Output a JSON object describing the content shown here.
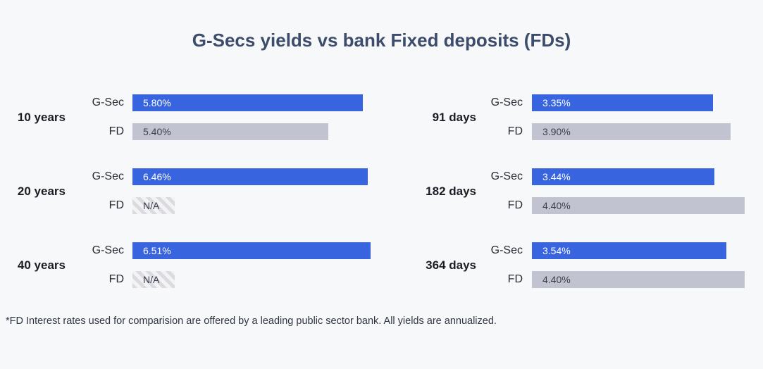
{
  "title": "G-Secs yields vs bank Fixed deposits (FDs)",
  "footnote": "*FD Interest rates used for comparision are offered by a leading public sector bank. All yields are annualized.",
  "colors": {
    "background": "#f7f8fa",
    "title": "#3d4c6b",
    "gsec_bar": "#3864df",
    "fd_bar": "#c1c3d0",
    "gsec_value_text": "#ffffff",
    "fd_value_text": "#3d3f4a",
    "na_hatch_stripe": "#dbdbdf",
    "na_hatch_gap": "#f3f3f6"
  },
  "chart_data": {
    "type": "bar",
    "orientation": "horizontal",
    "series_names": [
      "G-Sec",
      "FD"
    ],
    "grid": false,
    "legend_position": "none",
    "columns": [
      {
        "name": "long-tenor",
        "groups": [
          {
            "category": "10 years",
            "bars": [
              {
                "series": "G-Sec",
                "label": "5.80%",
                "value": 5.8,
                "width_pct": 93,
                "hatched": false
              },
              {
                "series": "FD",
                "label": "5.40%",
                "value": 5.4,
                "width_pct": 79,
                "hatched": false
              }
            ]
          },
          {
            "category": "20 years",
            "bars": [
              {
                "series": "G-Sec",
                "label": "6.46%",
                "value": 6.46,
                "width_pct": 95,
                "hatched": false
              },
              {
                "series": "FD",
                "label": "N/A",
                "value": null,
                "width_pct": 17,
                "hatched": true
              }
            ]
          },
          {
            "category": "40 years",
            "bars": [
              {
                "series": "G-Sec",
                "label": "6.51%",
                "value": 6.51,
                "width_pct": 96,
                "hatched": false
              },
              {
                "series": "FD",
                "label": "N/A",
                "value": null,
                "width_pct": 17,
                "hatched": true
              }
            ]
          }
        ]
      },
      {
        "name": "short-tenor",
        "groups": [
          {
            "category": "91 days",
            "bars": [
              {
                "series": "G-Sec",
                "label": "3.35%",
                "value": 3.35,
                "width_pct": 78.5,
                "hatched": false
              },
              {
                "series": "FD",
                "label": "3.90%",
                "value": 3.9,
                "width_pct": 86,
                "hatched": false
              }
            ]
          },
          {
            "category": "182 days",
            "bars": [
              {
                "series": "G-Sec",
                "label": "3.44%",
                "value": 3.44,
                "width_pct": 79,
                "hatched": false
              },
              {
                "series": "FD",
                "label": "4.40%",
                "value": 4.4,
                "width_pct": 92,
                "hatched": false
              }
            ]
          },
          {
            "category": "364 days",
            "bars": [
              {
                "series": "G-Sec",
                "label": "3.54%",
                "value": 3.54,
                "width_pct": 84,
                "hatched": false
              },
              {
                "series": "FD",
                "label": "4.40%",
                "value": 4.4,
                "width_pct": 92,
                "hatched": false
              }
            ]
          }
        ]
      }
    ]
  }
}
